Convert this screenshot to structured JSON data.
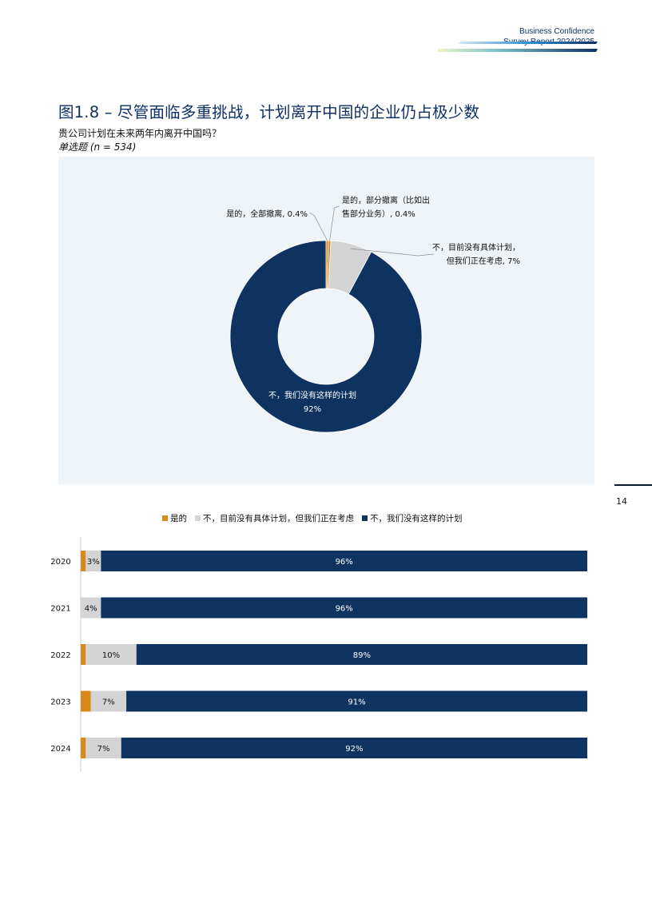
{
  "header": {
    "line1": "Business Confidence",
    "line2": "Survey Report  2024/2025"
  },
  "page": {
    "title": "图1.8 – 尽管面临多重挑战，计划离开中国的企业仍占极少数",
    "question": "贵公司计划在未来两年内离开中国吗？",
    "note": "单选题 (n = 534)",
    "page_number": "14"
  },
  "colors": {
    "yes": "#d9891c",
    "considering": "#d4d4d4",
    "no": "#0f3361",
    "panel": "#eff4f8",
    "title": "#0e2f66"
  },
  "chart_data": [
    {
      "type": "pie",
      "variant": "donut",
      "slices": [
        {
          "label_lines": [
            "是的，全部撤离, 0.4%"
          ],
          "value": 0.4,
          "color": "#d9891c"
        },
        {
          "label_lines": [
            "是的，部分撤离（比如出",
            "售部分业务）, 0.4%"
          ],
          "value": 0.4,
          "color": "#d9891c"
        },
        {
          "label_lines": [
            "不，目前没有具体计划，",
            "但我们正在考虑, 7%"
          ],
          "value": 7,
          "color": "#d4d4d4"
        },
        {
          "label_lines": [
            "不，我们没有这样的计划",
            "92%"
          ],
          "value": 92,
          "color": "#0f3361"
        }
      ]
    },
    {
      "type": "bar",
      "orientation": "horizontal",
      "stacked": true,
      "categories": [
        "2020",
        "2021",
        "2022",
        "2023",
        "2024"
      ],
      "series": [
        {
          "name": "是的",
          "color": "#d9891c",
          "values": [
            1,
            0,
            1,
            2,
            1
          ]
        },
        {
          "name": "不，目前没有具体计划，但我们正在考虑",
          "color": "#d4d4d4",
          "values": [
            3,
            4,
            10,
            7,
            7
          ],
          "labels": [
            "3%",
            "4%",
            "10%",
            "7%",
            "7%"
          ]
        },
        {
          "name": "不，我们没有这样的计划",
          "color": "#0f3361",
          "values": [
            96,
            96,
            89,
            91,
            92
          ],
          "labels": [
            "96%",
            "96%",
            "89%",
            "91%",
            "92%"
          ]
        }
      ],
      "legend_position": "top"
    }
  ]
}
